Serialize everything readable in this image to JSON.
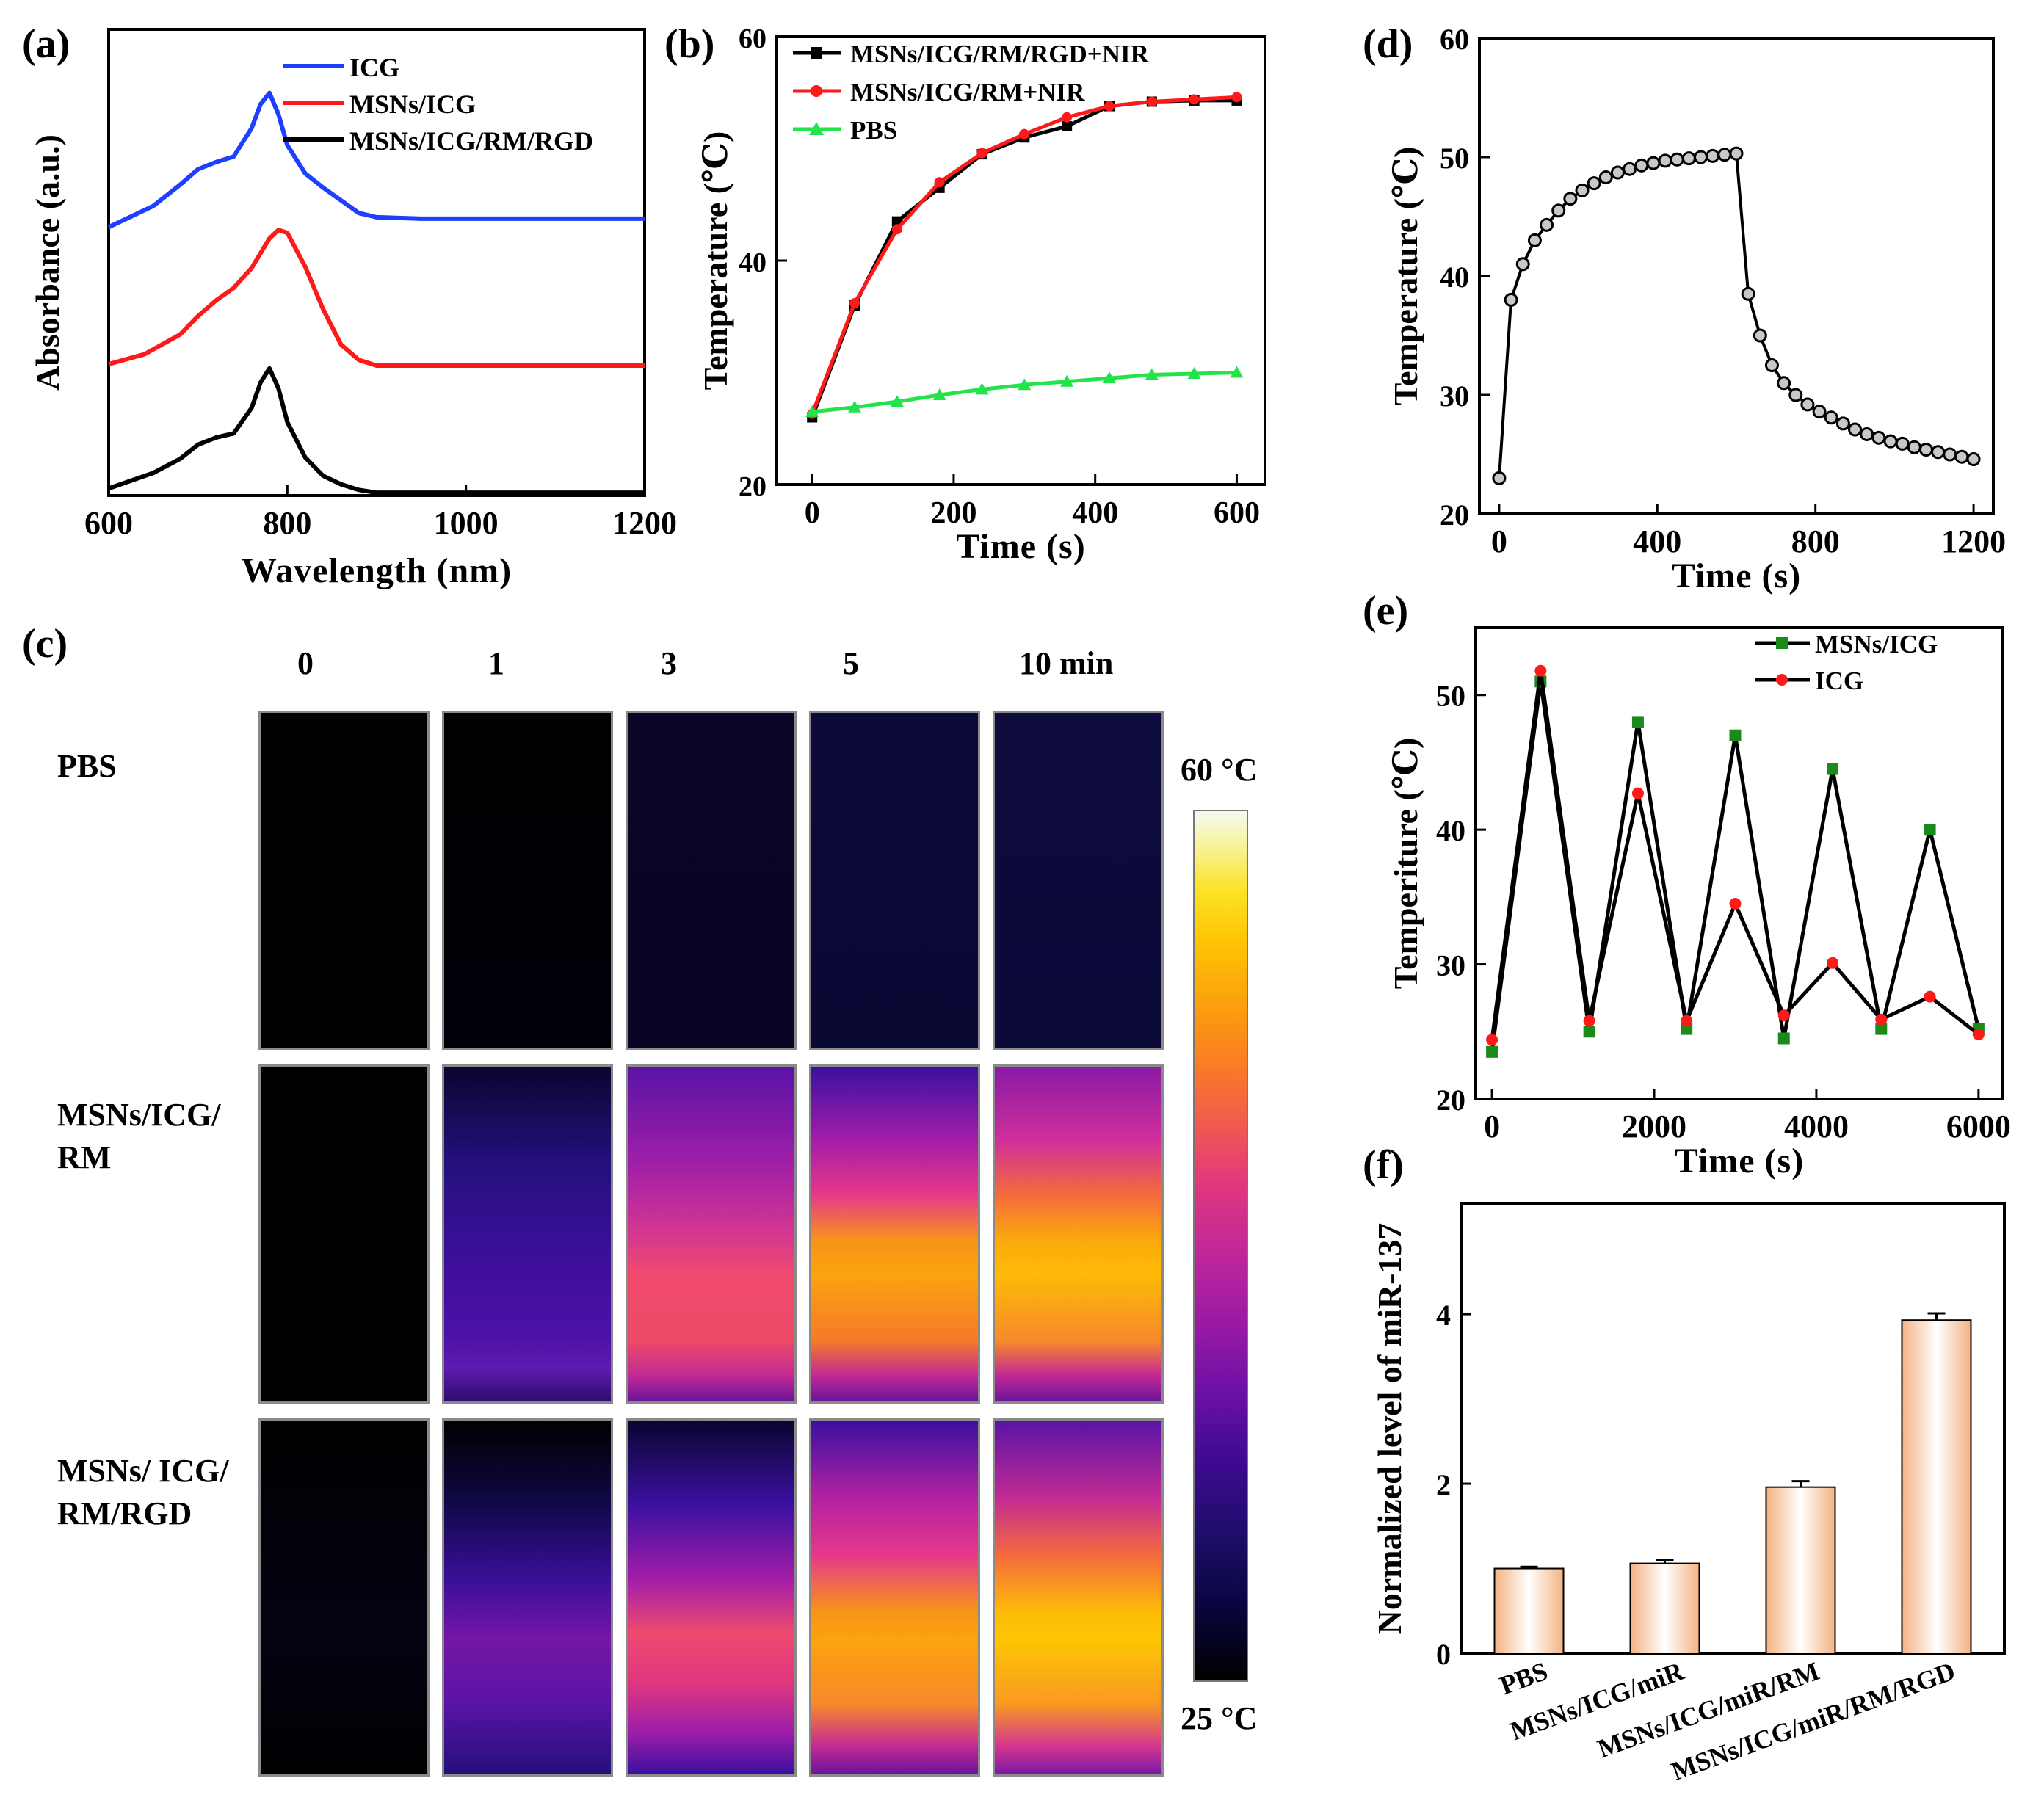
{
  "colors": {
    "blue": "#1f3fff",
    "red": "#ff1a1a",
    "black": "#000000",
    "green": "#22e34a",
    "dark_green": "#1a8a1a",
    "bar_fill": "#f3b383"
  },
  "panels": {
    "a": {
      "label": "(a)",
      "chart_data": {
        "type": "line",
        "xlabel": "Wavelength (nm)",
        "ylabel": "Absorbance (a.u.)",
        "xlim": [
          600,
          1200
        ],
        "xticks": [
          "600",
          "800",
          "1000",
          "1200"
        ],
        "ylim": [
          0,
          3.3
        ],
        "series": [
          {
            "name": "ICG",
            "color": "#1f3fff",
            "x": [
              600,
              650,
              680,
              700,
              720,
              740,
              760,
              770,
              780,
              790,
              800,
              820,
              840,
              860,
              880,
              900,
              950,
              1000,
              1100,
              1200
            ],
            "y": [
              1.9,
              2.05,
              2.2,
              2.31,
              2.36,
              2.4,
              2.6,
              2.77,
              2.85,
              2.7,
              2.48,
              2.28,
              2.18,
              2.09,
              2.0,
              1.97,
              1.96,
              1.96,
              1.96,
              1.96
            ]
          },
          {
            "name": "MSNs/ICG",
            "color": "#ff1a1a",
            "x": [
              600,
              640,
              680,
              700,
              720,
              740,
              760,
              780,
              790,
              800,
              820,
              840,
              860,
              880,
              900,
              950,
              1000,
              1100,
              1200
            ],
            "y": [
              0.93,
              1.0,
              1.14,
              1.27,
              1.38,
              1.47,
              1.61,
              1.82,
              1.88,
              1.86,
              1.62,
              1.32,
              1.07,
              0.96,
              0.92,
              0.92,
              0.92,
              0.92,
              0.92
            ]
          },
          {
            "name": "MSNs/ICG/RM/RGD",
            "color": "#000000",
            "x": [
              600,
              650,
              680,
              700,
              720,
              740,
              760,
              770,
              780,
              790,
              800,
              820,
              840,
              860,
              880,
              900,
              950,
              1000,
              1100,
              1200
            ],
            "y": [
              0.05,
              0.16,
              0.26,
              0.36,
              0.41,
              0.44,
              0.62,
              0.8,
              0.9,
              0.76,
              0.52,
              0.27,
              0.14,
              0.08,
              0.04,
              0.02,
              0.02,
              0.02,
              0.02,
              0.02
            ]
          }
        ]
      }
    },
    "b": {
      "label": "(b)",
      "chart_data": {
        "type": "line",
        "xlabel": "Time (s)",
        "ylabel": "Temperature (℃)",
        "xlim": [
          -50,
          640
        ],
        "xticks": [
          "0",
          "200",
          "400",
          "600"
        ],
        "ylim": [
          20,
          60
        ],
        "yticks": [
          "20",
          "40",
          "60"
        ],
        "series": [
          {
            "name": "MSNs/ICG/RM/RGD+NIR",
            "color": "#000000",
            "marker": "square",
            "x": [
              0,
              60,
              120,
              180,
              240,
              300,
              360,
              420,
              480,
              540,
              600
            ],
            "y": [
              26.0,
              36.0,
              43.5,
              46.5,
              49.5,
              51.0,
              52.0,
              53.8,
              54.2,
              54.3,
              54.3
            ]
          },
          {
            "name": "MSNs/ICG/RM+NIR",
            "color": "#ff1a1a",
            "marker": "circle",
            "x": [
              0,
              60,
              120,
              180,
              240,
              300,
              360,
              420,
              480,
              540,
              600
            ],
            "y": [
              26.3,
              36.2,
              42.8,
              47.0,
              49.6,
              51.3,
              52.8,
              53.8,
              54.2,
              54.4,
              54.6
            ]
          },
          {
            "name": "PBS",
            "color": "#22e34a",
            "marker": "triangle",
            "x": [
              0,
              60,
              120,
              180,
              240,
              300,
              360,
              420,
              480,
              540,
              600
            ],
            "y": [
              26.5,
              26.9,
              27.4,
              28.0,
              28.5,
              28.9,
              29.2,
              29.5,
              29.8,
              29.9,
              30.0
            ]
          }
        ]
      }
    },
    "c": {
      "label": "(c)",
      "time_labels": [
        "0",
        "1",
        "3",
        "5",
        "10 min"
      ],
      "row_labels": [
        "PBS",
        "MSNs/ICG/\nRM",
        "MSNs/ ICG/\nRM/RGD"
      ],
      "colorbar_max": "60 °C",
      "colorbar_min": "25 °C"
    },
    "d": {
      "label": "(d)",
      "chart_data": {
        "type": "scatter-line",
        "xlabel": "Time (s)",
        "ylabel": "Temperature (℃)",
        "xlim": [
          -50,
          1250
        ],
        "xticks": [
          "0",
          "400",
          "800",
          "1200"
        ],
        "ylim": [
          20,
          60
        ],
        "yticks": [
          "20",
          "30",
          "40",
          "50",
          "60"
        ],
        "series": [
          {
            "name": "heating-cooling",
            "color": "#000000",
            "x": [
              0,
              30,
              60,
              90,
              120,
              150,
              180,
              210,
              240,
              270,
              300,
              330,
              360,
              390,
              420,
              450,
              480,
              510,
              540,
              570,
              600,
              630,
              660,
              690,
              720,
              750,
              780,
              810,
              840,
              870,
              900,
              930,
              960,
              990,
              1020,
              1050,
              1080,
              1110,
              1140,
              1170,
              1200
            ],
            "y": [
              23.0,
              38.0,
              41.0,
              43.0,
              44.3,
              45.5,
              46.5,
              47.2,
              47.8,
              48.3,
              48.7,
              49.0,
              49.3,
              49.5,
              49.7,
              49.8,
              49.9,
              50.0,
              50.1,
              50.2,
              50.3,
              38.5,
              35.0,
              32.5,
              31.0,
              30.0,
              29.2,
              28.6,
              28.1,
              27.6,
              27.1,
              26.7,
              26.4,
              26.1,
              25.9,
              25.6,
              25.4,
              25.2,
              25.0,
              24.8,
              24.6
            ]
          }
        ]
      }
    },
    "e": {
      "label": "(e)",
      "chart_data": {
        "type": "line",
        "xlabel": "Time (s)",
        "ylabel": "Temperiture (℃)",
        "xlim": [
          -200,
          6300
        ],
        "xticks": [
          "0",
          "2000",
          "4000",
          "6000"
        ],
        "ylim": [
          20,
          55
        ],
        "yticks": [
          "20",
          "30",
          "40",
          "50"
        ],
        "series": [
          {
            "name": "MSNs/ICG",
            "color": "#000000",
            "marker_color": "#1a8a1a",
            "marker": "square",
            "x": [
              0,
              600,
              1200,
              1800,
              2400,
              3000,
              3600,
              4200,
              4800,
              5400,
              6000
            ],
            "y": [
              23.5,
              51.0,
              25.0,
              48.0,
              25.2,
              47.0,
              24.5,
              44.5,
              25.2,
              40.0,
              25.2
            ]
          },
          {
            "name": "ICG",
            "color": "#000000",
            "marker_color": "#ff1a1a",
            "marker": "circle",
            "x": [
              0,
              600,
              1200,
              1800,
              2400,
              3000,
              3600,
              4200,
              4800,
              5400,
              6000
            ],
            "y": [
              24.4,
              51.8,
              25.8,
              42.7,
              25.8,
              34.5,
              26.2,
              30.1,
              25.9,
              27.6,
              24.8
            ]
          }
        ]
      }
    },
    "f": {
      "label": "(f)",
      "chart_data": {
        "type": "bar",
        "ylabel": "Normalized level of miR-137",
        "categories": [
          "PBS",
          "MSNs/ICG/miR",
          "MSNs/ICG/miR/RM",
          "MSNs/ICG/miR/RM/RGD"
        ],
        "values": [
          1.0,
          1.06,
          1.96,
          3.93
        ],
        "errors": [
          0.02,
          0.04,
          0.07,
          0.08
        ],
        "ylim": [
          0,
          5.3
        ],
        "yticks": [
          "0",
          "2",
          "4"
        ]
      }
    }
  }
}
